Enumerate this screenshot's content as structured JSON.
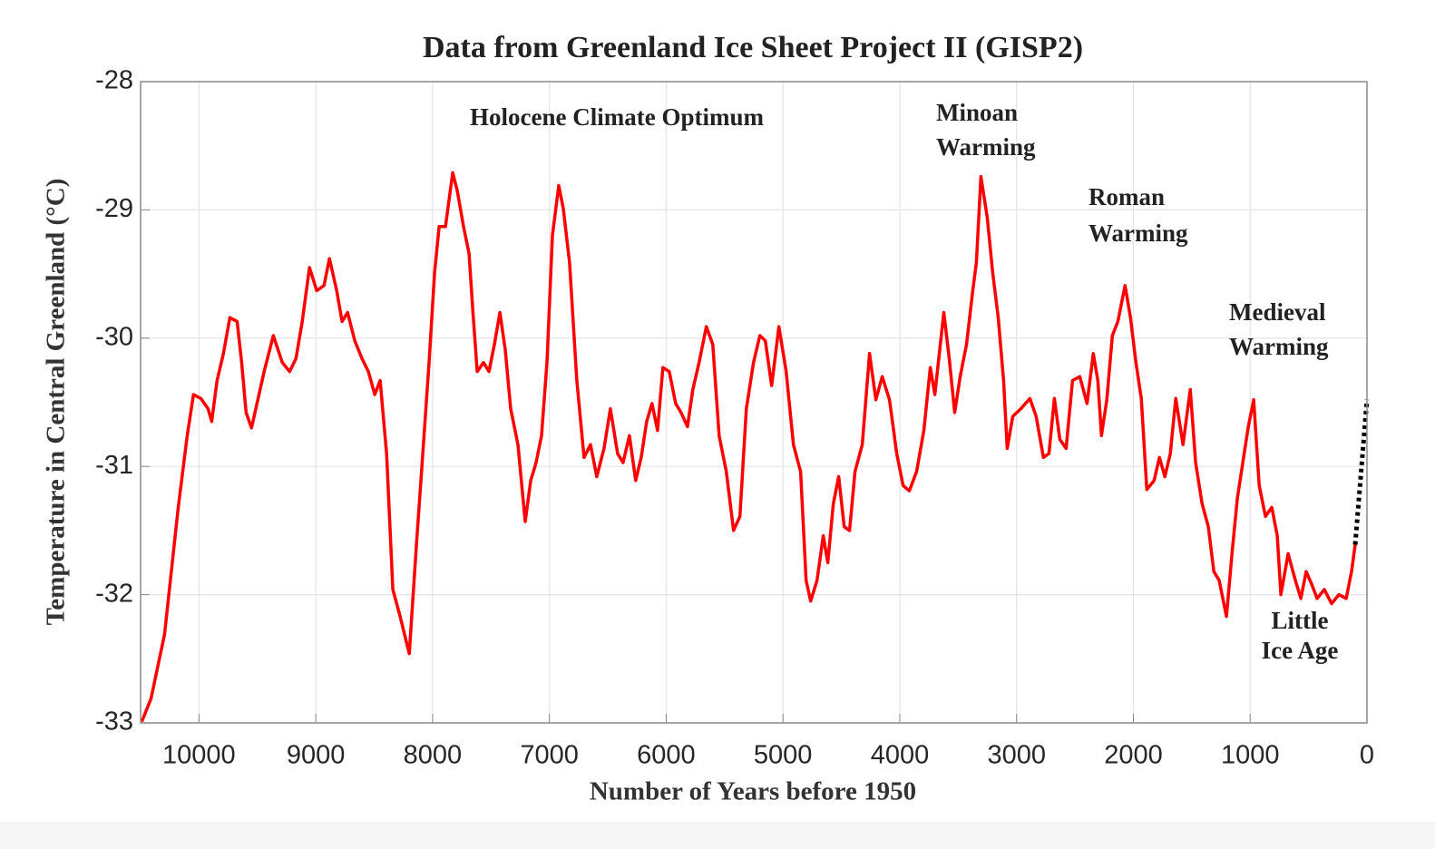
{
  "chart_data": {
    "type": "line",
    "title": "Data from Greenland Ice Sheet Project II (GISP2)",
    "x_label": "Number of Years before 1950",
    "y_label": "Temperature in Central Greenland (°C)",
    "annotations": [
      [
        "Holocene Climate Optimum"
      ],
      [
        "Minoan",
        "Warming"
      ],
      [
        "Roman",
        "Warming"
      ],
      [
        "Medieval",
        "Warming"
      ],
      [
        "Little",
        "Ice Age"
      ]
    ],
    "xlim": [
      10500,
      0
    ],
    "ylim": [
      -33,
      -28
    ],
    "xticks": [
      10000,
      9000,
      8000,
      7000,
      6000,
      5000,
      4000,
      3000,
      2000,
      1000,
      0
    ],
    "yticks": [
      -33,
      -32,
      -31,
      -30,
      -29,
      -28
    ],
    "grid": true,
    "series": [
      {
        "color": "#ff0000",
        "dash": false,
        "x": [
          10490,
          10411,
          10295,
          10178,
          10101,
          10047,
          9984,
          9922,
          9891,
          9845,
          9791,
          9736,
          9674,
          9635,
          9597,
          9550,
          9442,
          9364,
          9287,
          9224,
          9170,
          9116,
          9054,
          8992,
          8930,
          8883,
          8821,
          8775,
          8728,
          8666,
          8604,
          8550,
          8495,
          8449,
          8394,
          8340,
          8278,
          8200,
          8138,
          8084,
          8030,
          7983,
          7944,
          7890,
          7828,
          7789,
          7735,
          7688,
          7657,
          7618,
          7564,
          7517,
          7471,
          7424,
          7378,
          7331,
          7269,
          7207,
          7160,
          7114,
          7067,
          7021,
          6974,
          6920,
          6881,
          6827,
          6765,
          6703,
          6648,
          6594,
          6532,
          6478,
          6416,
          6369,
          6315,
          6261,
          6214,
          6167,
          6121,
          6074,
          6028,
          5974,
          5919,
          5873,
          5818,
          5772,
          5718,
          5656,
          5601,
          5547,
          5485,
          5423,
          5369,
          5314,
          5252,
          5198,
          5151,
          5097,
          5035,
          4973,
          4911,
          4849,
          4802,
          4763,
          4709,
          4655,
          4616,
          4569,
          4523,
          4476,
          4430,
          4383,
          4321,
          4259,
          4205,
          4150,
          4088,
          4026,
          3972,
          3918,
          3856,
          3794,
          3739,
          3700,
          3623,
          3576,
          3530,
          3483,
          3429,
          3375,
          3344,
          3305,
          3251,
          3204,
          3157,
          3111,
          3080,
          3033,
          2963,
          2886,
          2832,
          2770,
          2723,
          2676,
          2630,
          2576,
          2521,
          2459,
          2397,
          2343,
          2304,
          2273,
          2227,
          2180,
          2133,
          2071,
          2025,
          1978,
          1932,
          1885,
          1823,
          1777,
          1730,
          1684,
          1637,
          1575,
          1513,
          1467,
          1412,
          1358,
          1311,
          1265,
          1203,
          1156,
          1110,
          1063,
          1016,
          970,
          923,
          869,
          815,
          768,
          737,
          675,
          613,
          566,
          520,
          473,
          427,
          365,
          303,
          241,
          178,
          132,
          101
        ],
        "values": [
          -32.99,
          -32.81,
          -32.31,
          -31.32,
          -30.76,
          -30.44,
          -30.47,
          -30.55,
          -30.65,
          -30.33,
          -30.12,
          -29.84,
          -29.87,
          -30.19,
          -30.58,
          -30.7,
          -30.26,
          -29.98,
          -30.19,
          -30.26,
          -30.16,
          -29.87,
          -29.45,
          -29.63,
          -29.59,
          -29.38,
          -29.63,
          -29.87,
          -29.8,
          -30.02,
          -30.16,
          -30.26,
          -30.44,
          -30.33,
          -30.9,
          -31.96,
          -32.17,
          -32.46,
          -31.61,
          -30.9,
          -30.19,
          -29.49,
          -29.13,
          -29.13,
          -28.71,
          -28.85,
          -29.13,
          -29.34,
          -29.77,
          -30.26,
          -30.19,
          -30.26,
          -30.05,
          -29.8,
          -30.09,
          -30.55,
          -30.83,
          -31.43,
          -31.11,
          -30.97,
          -30.76,
          -30.19,
          -29.2,
          -28.81,
          -28.99,
          -29.41,
          -30.33,
          -30.93,
          -30.83,
          -31.08,
          -30.86,
          -30.55,
          -30.9,
          -30.97,
          -30.76,
          -31.11,
          -30.93,
          -30.65,
          -30.51,
          -30.72,
          -30.23,
          -30.26,
          -30.51,
          -30.58,
          -30.69,
          -30.4,
          -30.19,
          -29.91,
          -30.05,
          -30.76,
          -31.04,
          -31.5,
          -31.39,
          -30.55,
          -30.19,
          -29.98,
          -30.02,
          -30.37,
          -29.91,
          -30.26,
          -30.83,
          -31.04,
          -31.89,
          -32.05,
          -31.89,
          -31.54,
          -31.75,
          -31.29,
          -31.08,
          -31.47,
          -31.5,
          -31.04,
          -30.83,
          -30.12,
          -30.48,
          -30.3,
          -30.48,
          -30.9,
          -31.15,
          -31.19,
          -31.04,
          -30.72,
          -30.23,
          -30.44,
          -29.8,
          -30.16,
          -30.58,
          -30.3,
          -30.05,
          -29.63,
          -29.41,
          -28.74,
          -29.06,
          -29.49,
          -29.84,
          -30.33,
          -30.86,
          -30.61,
          -30.55,
          -30.47,
          -30.61,
          -30.93,
          -30.9,
          -30.47,
          -30.79,
          -30.86,
          -30.33,
          -30.3,
          -30.51,
          -30.12,
          -30.33,
          -30.76,
          -30.48,
          -29.98,
          -29.87,
          -29.59,
          -29.84,
          -30.19,
          -30.47,
          -31.18,
          -31.11,
          -30.93,
          -31.08,
          -30.9,
          -30.47,
          -30.83,
          -30.4,
          -30.97,
          -31.29,
          -31.47,
          -31.82,
          -31.89,
          -32.17,
          -31.68,
          -31.25,
          -30.97,
          -30.69,
          -30.48,
          -31.15,
          -31.39,
          -31.32,
          -31.54,
          -32.0,
          -31.68,
          -31.89,
          -32.03,
          -31.82,
          -31.92,
          -32.03,
          -31.96,
          -32.07,
          -32.0,
          -32.03,
          -31.82,
          -31.61
        ]
      },
      {
        "color": "#000000",
        "dash": true,
        "x": [
          101,
          0
        ],
        "values": [
          -31.61,
          -30.48
        ]
      }
    ]
  }
}
